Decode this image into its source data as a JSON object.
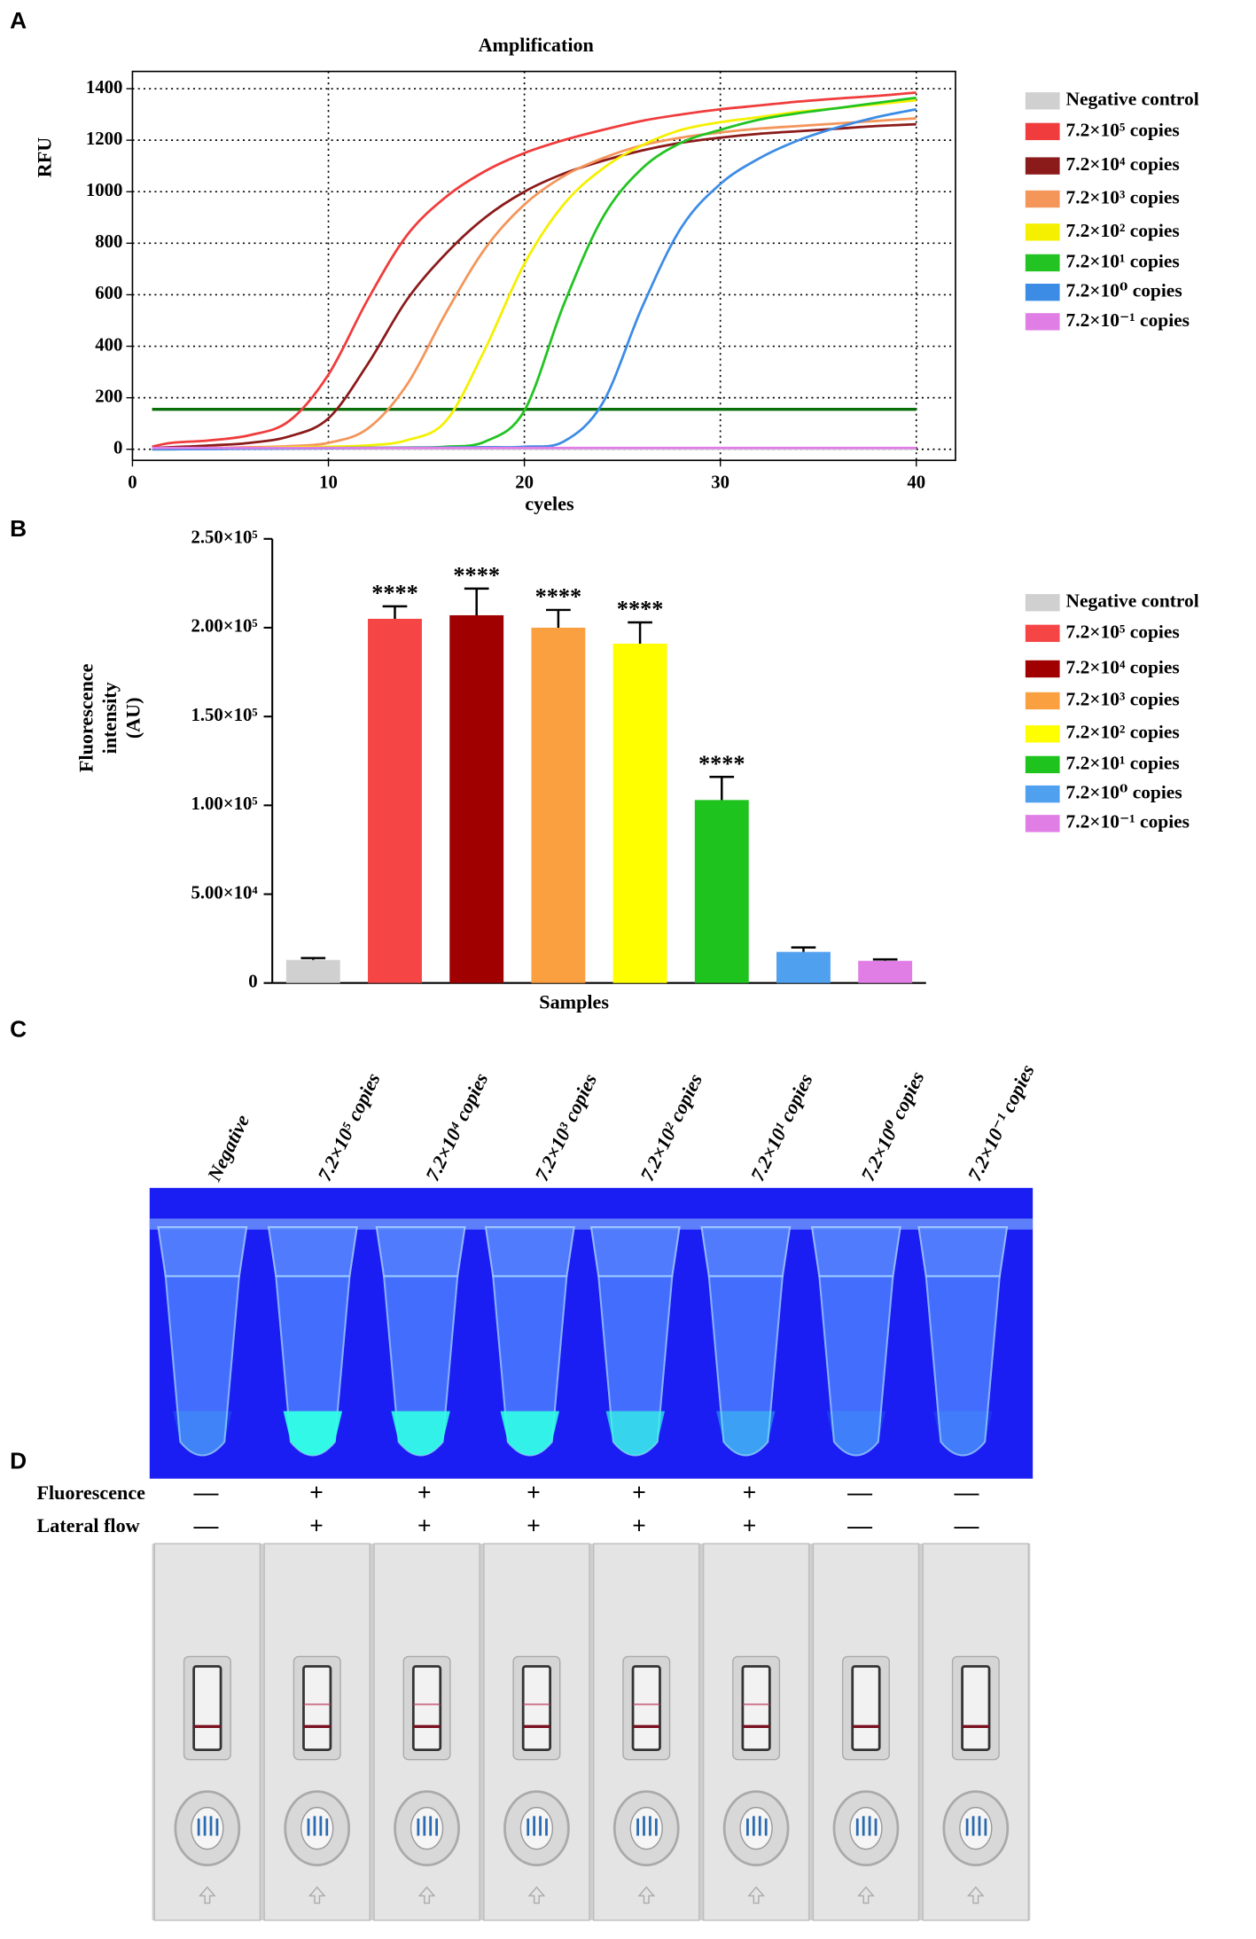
{
  "panel_letters": [
    "A",
    "B",
    "C",
    "D"
  ],
  "chart_data": [
    {
      "type": "line",
      "title": "Amplification",
      "xlabel": "cyeles",
      "ylabel": "RFU",
      "x": [
        1,
        2,
        4,
        6,
        8,
        10,
        12,
        14,
        16,
        18,
        20,
        22,
        24,
        26,
        28,
        30,
        32,
        34,
        36,
        38,
        40
      ],
      "series": [
        {
          "name": "Negative control",
          "color": "#d0d0d0",
          "values": [
            2,
            2,
            2,
            2,
            2,
            2,
            2,
            2,
            2,
            2,
            2,
            2,
            2,
            2,
            2,
            2,
            2,
            2,
            2,
            2,
            2
          ]
        },
        {
          "name": "7.2×10⁵  copies",
          "color": "#f03c3c",
          "values": [
            10,
            25,
            35,
            55,
            110,
            290,
            580,
            830,
            980,
            1080,
            1150,
            1200,
            1240,
            1275,
            1300,
            1320,
            1335,
            1350,
            1362,
            1372,
            1385
          ]
        },
        {
          "name": "7.2×10⁴  copies",
          "color": "#8b1a1a",
          "values": [
            5,
            8,
            15,
            25,
            50,
            120,
            330,
            580,
            760,
            900,
            1000,
            1070,
            1120,
            1160,
            1190,
            1210,
            1225,
            1235,
            1245,
            1255,
            1262
          ]
        },
        {
          "name": "7.2×10³  copies",
          "color": "#f4955a",
          "values": [
            0,
            2,
            5,
            8,
            12,
            25,
            80,
            250,
            530,
            780,
            950,
            1060,
            1130,
            1180,
            1210,
            1230,
            1245,
            1255,
            1265,
            1275,
            1285
          ]
        },
        {
          "name": "7.2×10²  copies",
          "color": "#f5f000",
          "values": [
            0,
            1,
            3,
            5,
            8,
            10,
            15,
            35,
            110,
            390,
            720,
            950,
            1090,
            1180,
            1240,
            1270,
            1290,
            1310,
            1325,
            1340,
            1355
          ]
        },
        {
          "name": "7.2×10¹  copies",
          "color": "#22c322",
          "values": [
            0,
            0,
            2,
            3,
            4,
            5,
            6,
            7,
            10,
            30,
            150,
            560,
            900,
            1090,
            1190,
            1240,
            1280,
            1305,
            1325,
            1345,
            1365
          ]
        },
        {
          "name": "7.2×10⁰  copies",
          "color": "#3c8ce6",
          "values": [
            0,
            0,
            1,
            2,
            3,
            4,
            5,
            6,
            7,
            8,
            10,
            30,
            180,
            550,
            860,
            1030,
            1130,
            1200,
            1250,
            1290,
            1320
          ]
        },
        {
          "name": "7.2×10⁻¹ copies",
          "color": "#e07ee6",
          "values": [
            5,
            5,
            5,
            5,
            5,
            5,
            5,
            5,
            5,
            5,
            5,
            5,
            5,
            5,
            5,
            5,
            5,
            5,
            5,
            5,
            5
          ]
        }
      ],
      "threshold": 155,
      "threshold_color": "#0a6e0a",
      "xlim": [
        0,
        42
      ],
      "ylim": [
        -43,
        1467
      ],
      "xticks": [
        0,
        10,
        20,
        30,
        40
      ],
      "yticks": [
        0,
        200,
        400,
        600,
        800,
        1000,
        1200,
        1400
      ],
      "grid": true
    },
    {
      "type": "bar",
      "xlabel": "Samples",
      "ylabel": [
        "Fluorescence",
        "intensity",
        "(AU)"
      ],
      "categories": [
        null,
        null,
        null,
        null,
        null,
        null,
        null,
        null
      ],
      "values": [
        13000,
        205000,
        207000,
        200000,
        191000,
        103000,
        17500,
        12500
      ],
      "errors": [
        1000,
        7000,
        15000,
        10000,
        12000,
        13000,
        2500,
        800
      ],
      "colors": [
        "#d0d0d0",
        "#f54545",
        "#a00000",
        "#fba040",
        "#ffff00",
        "#1ec31e",
        "#50a0f0",
        "#e07ee6"
      ],
      "significance": [
        null,
        "****",
        "****",
        "****",
        "****",
        "****",
        null,
        null
      ],
      "legend": [
        "Negative control",
        "7.2×10⁵  copies",
        "7.2×10⁴  copies",
        "7.2×10³  copies",
        "7.2×10²  copies",
        "7.2×10¹  copies",
        "7.2×10⁰  copies",
        "7.2×10⁻¹ copies"
      ],
      "ylim": [
        0,
        250000
      ],
      "yticks": [
        0,
        {
          "value": 50000,
          "label": "5.00×10⁴"
        },
        {
          "value": 100000,
          "label": "1.00×10⁵"
        },
        {
          "value": 150000,
          "label": "1.50×10⁵"
        },
        {
          "value": 200000,
          "label": "2.00×10⁵"
        },
        {
          "value": 250000,
          "label": "2.50×10⁵"
        }
      ]
    }
  ],
  "tube_labels": [
    "Negative",
    "7.2×10⁵ copies",
    "7.2×10⁴ copies",
    "7.2×10³ copies",
    "7.2×10² copies",
    "7.2×10¹ copies",
    "7.2×10⁰ copies",
    "7.2×10⁻¹ copies"
  ],
  "table": {
    "rows": [
      {
        "label": "Fluorescence",
        "cells": [
          "—",
          "+",
          "+",
          "+",
          "+",
          "+",
          "—",
          "—"
        ]
      },
      {
        "label": "Lateral flow",
        "cells": [
          "—",
          "+",
          "+",
          "+",
          "+",
          "+",
          "—",
          "—"
        ]
      }
    ]
  }
}
